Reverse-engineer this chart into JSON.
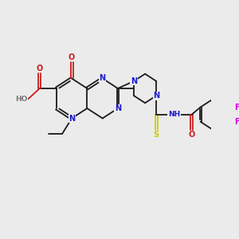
{
  "background_color": "#ebebeb",
  "bond_color": "#1a1a1a",
  "atom_colors": {
    "N": "#1a1acc",
    "O": "#cc1a1a",
    "S": "#cccc00",
    "F": "#e000e0",
    "H": "#777777"
  },
  "figsize": [
    3.0,
    3.0
  ],
  "dpi": 100
}
